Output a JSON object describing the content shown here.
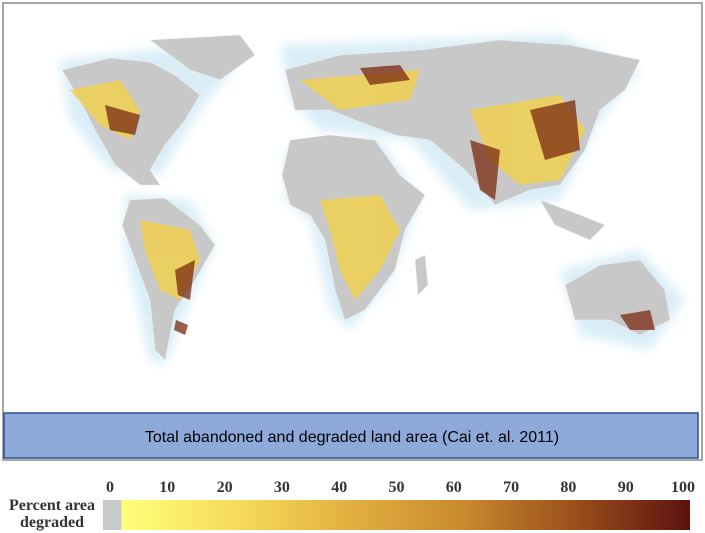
{
  "map": {
    "caption": "Total abandoned and degraded land area (Cai et. al. 2011)"
  },
  "legend": {
    "label_lines": [
      "Percent area",
      "degraded"
    ],
    "min": 0,
    "max": 100,
    "ticks": [
      0,
      10,
      20,
      30,
      40,
      50,
      60,
      70,
      80,
      90,
      100
    ],
    "zero_color": "#c9c9c9",
    "colors": [
      "#ffff7a",
      "#f6dc5a",
      "#e2b040",
      "#c98a2c",
      "#9a4e1c",
      "#5c120e"
    ]
  }
}
